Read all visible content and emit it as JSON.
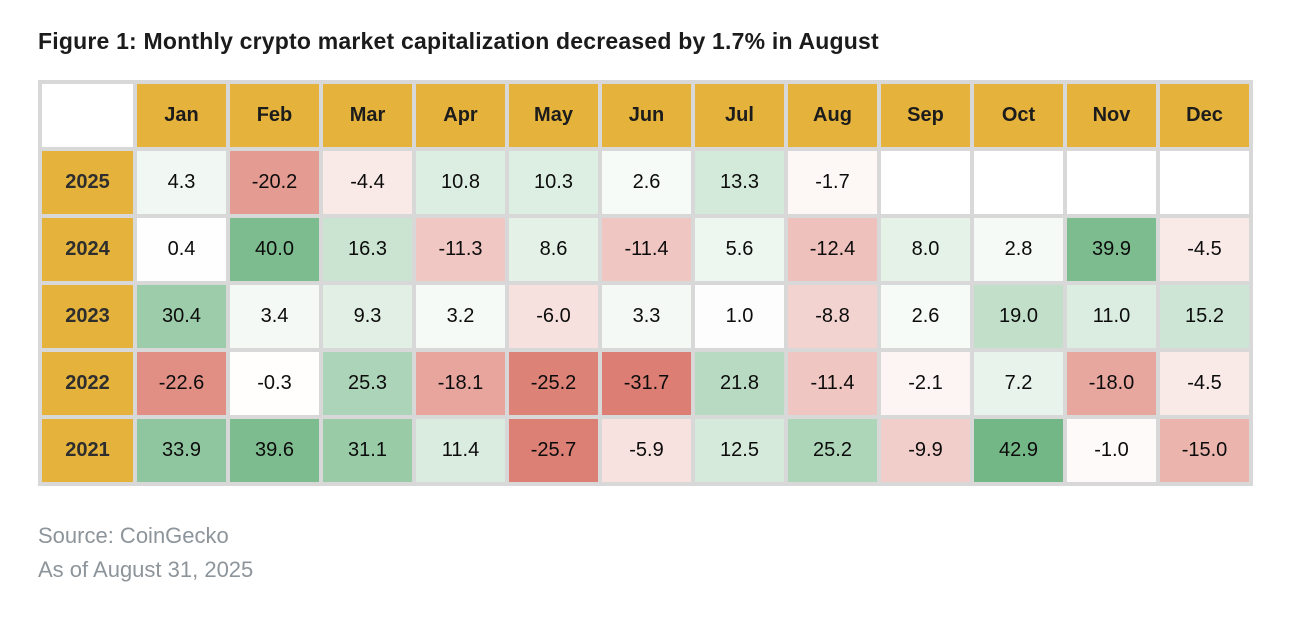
{
  "page": {
    "title": "Figure 1: Monthly crypto market capitalization decreased by 1.7% in August",
    "source": "Source: CoinGecko",
    "as_of": "As of August 31, 2025"
  },
  "colors": {
    "header_gold": "#E5B33C",
    "grid_gray": "#D8D8D8",
    "neutral": "#FFFFFF",
    "positive_anchor": "#6FB583",
    "negative_anchor": "#DC7E73",
    "footer_text": "#8D959B",
    "title_text": "#1B1B1B"
  },
  "heatmap_scale": {
    "positive_domain": 44,
    "negative_domain": 26
  },
  "chart_data": {
    "type": "heatmap",
    "title": "Figure 1: Monthly crypto market capitalization decreased by 1.7% in August",
    "value_unit": "percent_change",
    "columns": [
      "Jan",
      "Feb",
      "Mar",
      "Apr",
      "May",
      "Jun",
      "Jul",
      "Aug",
      "Sep",
      "Oct",
      "Nov",
      "Dec"
    ],
    "rows": [
      {
        "year": "2025",
        "values": [
          4.3,
          -20.2,
          -4.4,
          10.8,
          10.3,
          2.6,
          13.3,
          -1.7,
          null,
          null,
          null,
          null
        ]
      },
      {
        "year": "2024",
        "values": [
          0.4,
          40.0,
          16.3,
          -11.3,
          8.6,
          -11.4,
          5.6,
          -12.4,
          8.0,
          2.8,
          39.9,
          -4.5
        ]
      },
      {
        "year": "2023",
        "values": [
          30.4,
          3.4,
          9.3,
          3.2,
          -6.0,
          3.3,
          1.0,
          -8.8,
          2.6,
          19.0,
          11.0,
          15.2
        ]
      },
      {
        "year": "2022",
        "values": [
          -22.6,
          -0.3,
          25.3,
          -18.1,
          -25.2,
          -31.7,
          21.8,
          -11.4,
          -2.1,
          7.2,
          -18.0,
          -4.5
        ]
      },
      {
        "year": "2021",
        "values": [
          33.9,
          39.6,
          31.1,
          11.4,
          -25.7,
          -5.9,
          12.5,
          25.2,
          -9.9,
          42.9,
          -1.0,
          -15.0
        ]
      }
    ],
    "layout": {
      "color_low": "#DC7E73",
      "color_mid": "#FFFFFF",
      "color_high": "#6FB583",
      "grid": "on",
      "legend": "none"
    }
  }
}
